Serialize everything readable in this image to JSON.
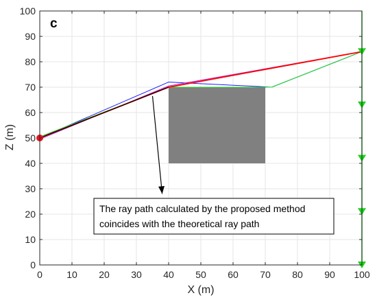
{
  "chart_data": {
    "type": "line",
    "panel_label": "c",
    "xlabel": "X (m)",
    "ylabel": "Z (m)",
    "xlim": [
      0,
      100
    ],
    "ylim": [
      0,
      100
    ],
    "xticks": [
      0,
      10,
      20,
      30,
      40,
      50,
      60,
      70,
      80,
      90,
      100
    ],
    "yticks": [
      0,
      10,
      20,
      30,
      40,
      50,
      60,
      70,
      80,
      90,
      100
    ],
    "grid": true,
    "obstacle": {
      "x": [
        40,
        70
      ],
      "y": [
        40,
        70
      ],
      "color": "#808080"
    },
    "source": {
      "x": 0,
      "y": 50,
      "color": "#e8141e"
    },
    "receivers": {
      "x": 100,
      "y": [
        84,
        63,
        42,
        21,
        0
      ],
      "color": "#1ed21e",
      "line_color": "#1ed21e"
    },
    "series": [
      {
        "color": "#1a1aff",
        "width": 1,
        "points": [
          [
            0,
            50
          ],
          [
            40,
            72
          ],
          [
            72,
            70
          ],
          [
            100,
            84
          ]
        ]
      },
      {
        "color": "#aa22cc",
        "width": 1,
        "points": [
          [
            0,
            49.5
          ],
          [
            40,
            70.5
          ],
          [
            100,
            84
          ]
        ]
      },
      {
        "color": "#22dd22",
        "width": 1,
        "points": [
          [
            0,
            50.5
          ],
          [
            40,
            70
          ],
          [
            72,
            70
          ],
          [
            100,
            84
          ]
        ]
      },
      {
        "color": "#ff0000",
        "width": 1.8,
        "points": [
          [
            0,
            50
          ],
          [
            40,
            70
          ],
          [
            100,
            84
          ]
        ]
      },
      {
        "color": "#000000",
        "width": 1.2,
        "points": [
          [
            0,
            50
          ],
          [
            40,
            70
          ]
        ]
      }
    ],
    "annotation": {
      "lines": [
        "The ray path calculated by the proposed method",
        "coincides with the theoretical ray path"
      ],
      "arrow_from": [
        35,
        66.5
      ],
      "arrow_to": [
        38,
        28
      ]
    }
  }
}
